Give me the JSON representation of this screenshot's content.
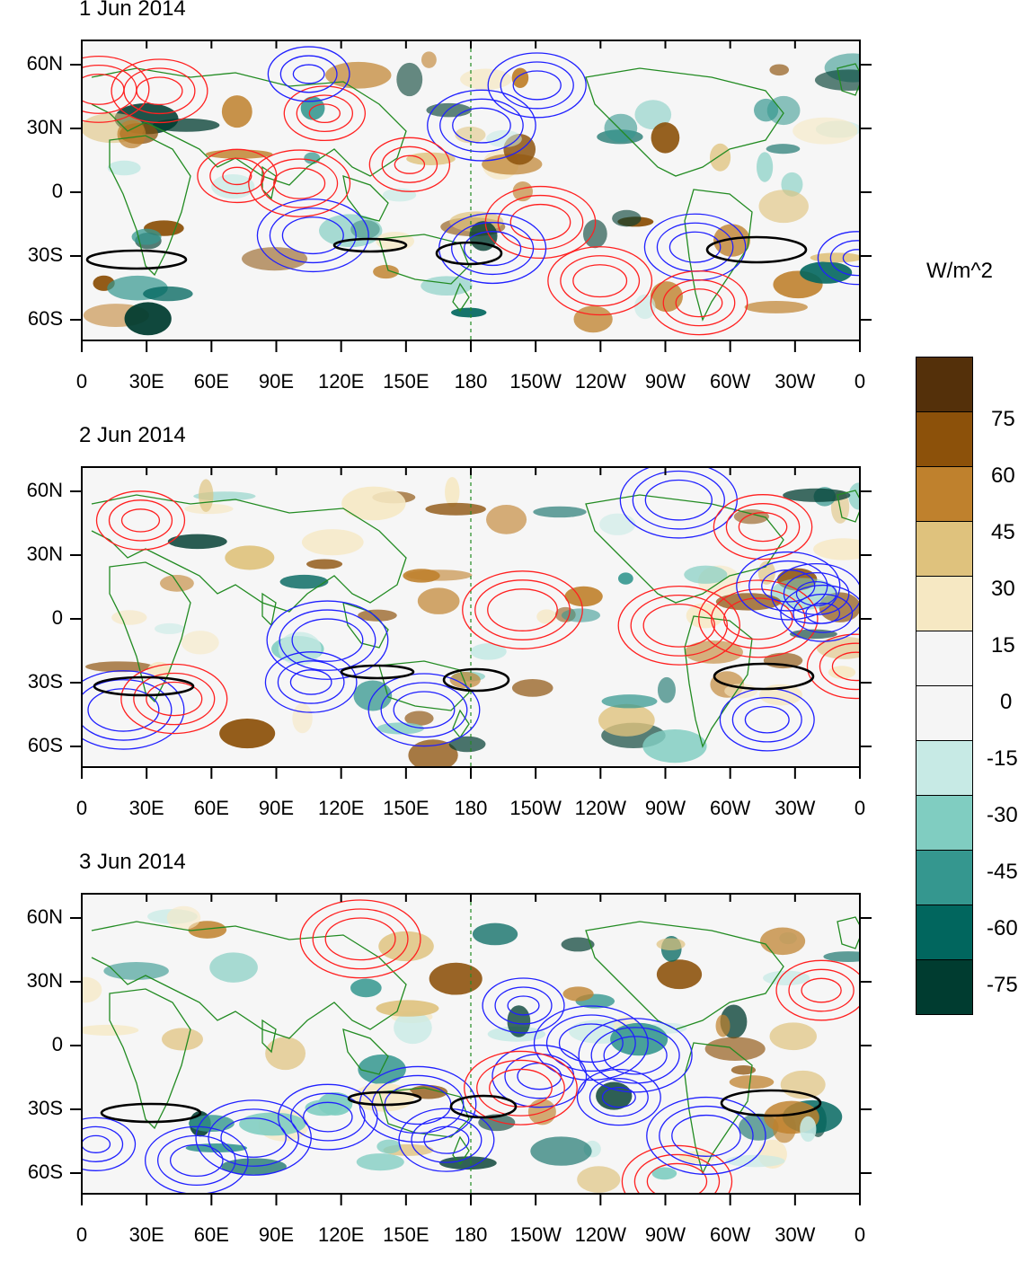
{
  "panels": [
    {
      "title": "1 Jun 2014"
    },
    {
      "title": "2 Jun 2014"
    },
    {
      "title": "3 Jun 2014"
    }
  ],
  "lat_labels": [
    "60N",
    "30N",
    "0",
    "30S",
    "60S"
  ],
  "lon_labels": [
    "0",
    "30E",
    "60E",
    "90E",
    "120E",
    "150E",
    "180",
    "150W",
    "120W",
    "90W",
    "60W",
    "30W",
    "0"
  ],
  "colorbar": {
    "unit": "W/m^2",
    "labels": [
      "75",
      "60",
      "45",
      "30",
      "15",
      "0",
      "-15",
      "-30",
      "-45",
      "-60",
      "-75"
    ],
    "colors": [
      "#54300a",
      "#8c510a",
      "#bf812d",
      "#dfc27d",
      "#f6e8c3",
      "#f5f5f5",
      "#f5f5f5",
      "#c7eae5",
      "#80cdc1",
      "#35978f",
      "#01665e",
      "#003c30"
    ]
  },
  "contour_colors": {
    "positive": "#ff2020",
    "negative": "#2020ff",
    "highlight": "#000000",
    "coast": "#228b22"
  }
}
